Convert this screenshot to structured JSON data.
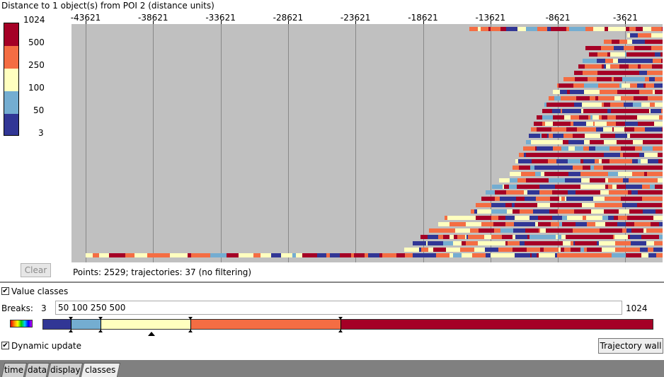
{
  "title": "Distance to 1 object(s) from POI 2 (distance units)",
  "legend": {
    "labels": [
      "1024",
      "500",
      "250",
      "100",
      "50",
      "3"
    ],
    "colors": [
      "#a50026",
      "#f46d43",
      "#ffffbf",
      "#74add1",
      "#313695"
    ]
  },
  "axis": {
    "ticks": [
      "-43621",
      "-38621",
      "-33621",
      "-28621",
      "-23621",
      "-18621",
      "-13621",
      "-8621",
      "-3621"
    ]
  },
  "clear_label": "Clear",
  "status": "Points: 2529; trajectories: 37 (no filtering)",
  "value_classes": {
    "checked": "✔",
    "label": "Value classes"
  },
  "breaks": {
    "label": "Breaks:",
    "min": "3",
    "value": "50 100 250 500",
    "max": "1024",
    "colors": [
      "#313695",
      "#74add1",
      "#ffffbf",
      "#f46d43",
      "#a50026"
    ]
  },
  "dynamic_update": {
    "checked": "✔",
    "label": "Dynamic update"
  },
  "trajectory_wall_label": "Trajectory wall",
  "tabs": [
    "time",
    "data",
    "display",
    "classes"
  ],
  "active_tab": "classes",
  "trajectories": {
    "start_x": [
      -15200,
      -3500,
      -5200,
      -6600,
      -6300,
      -6800,
      -7100,
      -7400,
      -8200,
      -8700,
      -9000,
      -9300,
      -9600,
      -9800,
      -10200,
      -10400,
      -10600,
      -10800,
      -11000,
      -11200,
      -11500,
      -11800,
      -12000,
      -12200,
      -13000,
      -13500,
      -14000,
      -14300,
      -14700,
      -15100,
      -17000,
      -17500,
      -18200,
      -18800,
      -19400,
      -20000,
      -43621
    ],
    "end_x": [
      1200,
      1200,
      1200,
      1200,
      1200,
      1200,
      1200,
      1200,
      1200,
      1200,
      1200,
      1200,
      1200,
      1200,
      1200,
      1200,
      1200,
      1200,
      1200,
      1200,
      1200,
      1200,
      1200,
      1200,
      1200,
      1200,
      1200,
      1200,
      1200,
      1200,
      1200,
      1200,
      1200,
      1200,
      1200,
      1200,
      1200
    ]
  }
}
